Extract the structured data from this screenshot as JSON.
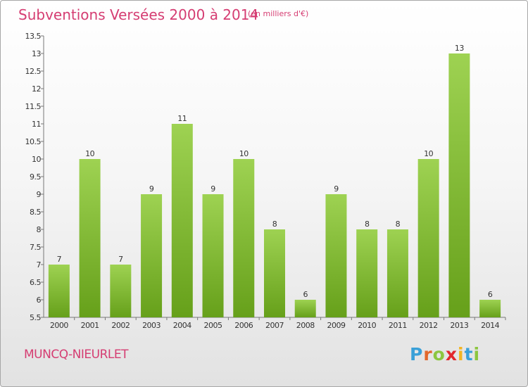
{
  "header": {
    "title": "Subventions Versées 2000 à 2014",
    "unit_note": "(en milliers d'€)"
  },
  "footer": {
    "commune": "MUNCQ-NIEURLET",
    "logo_letters": [
      {
        "char": "P",
        "color": "#3aa0d8"
      },
      {
        "char": "r",
        "color": "#e2682c"
      },
      {
        "char": "o",
        "color": "#8cc63f"
      },
      {
        "char": "x",
        "color": "#e2272c"
      },
      {
        "char": "i",
        "color": "#f3b522"
      },
      {
        "char": "t",
        "color": "#3aa0d8"
      },
      {
        "char": "i",
        "color": "#8cc63f"
      }
    ]
  },
  "colors": {
    "bar_top": "#9ed252",
    "bar_bottom": "#66a01a",
    "axis": "#777777",
    "text": "#333333",
    "accent": "#d53d72"
  },
  "chart_data": {
    "type": "bar",
    "title": "Subventions Versées 2000 à 2014",
    "subtitle": "(en milliers d'€)",
    "xlabel": "",
    "ylabel": "",
    "categories": [
      "2000",
      "2001",
      "2002",
      "2003",
      "2004",
      "2005",
      "2006",
      "2007",
      "2008",
      "2009",
      "2010",
      "2011",
      "2012",
      "2013",
      "2014"
    ],
    "values": [
      7,
      10,
      7,
      9,
      11,
      9,
      10,
      8,
      6,
      9,
      8,
      8,
      10,
      13,
      6
    ],
    "data_labels": [
      "7",
      "10",
      "7",
      "9",
      "11",
      "9",
      "10",
      "8",
      "6",
      "9",
      "8",
      "8",
      "10",
      "13",
      "6"
    ],
    "ylim": [
      5.5,
      13.5
    ],
    "yticks": [
      5.5,
      6,
      6.5,
      7,
      7.5,
      8,
      8.5,
      9,
      9.5,
      10,
      10.5,
      11,
      11.5,
      12,
      12.5,
      13,
      13.5
    ],
    "ytick_labels": [
      "5.5",
      "6",
      "6.5",
      "7",
      "7.5",
      "8",
      "8.5",
      "9",
      "9.5",
      "10",
      "10.5",
      "11",
      "11.5",
      "12",
      "12.5",
      "13",
      "13.5"
    ],
    "grid": false,
    "legend": "none"
  }
}
